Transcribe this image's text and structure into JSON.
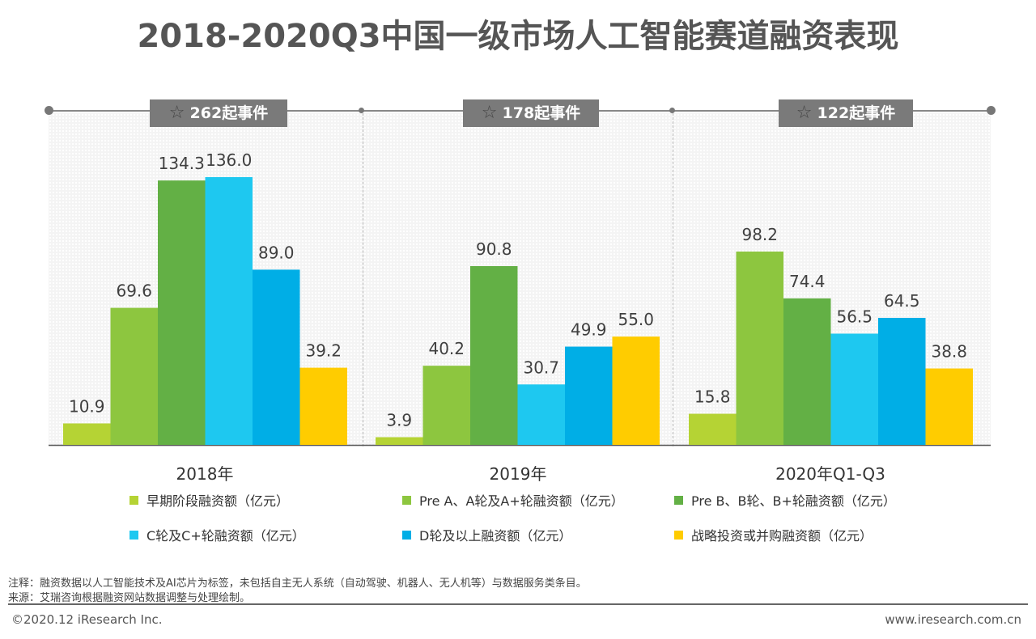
{
  "title": "2018-2020Q3中国一级市场人工智能赛道融资表现",
  "badges": [
    {
      "icon": "star-icon",
      "text": "262起事件"
    },
    {
      "icon": "star-icon",
      "text": "178起事件"
    },
    {
      "icon": "star-icon",
      "text": "122起事件"
    }
  ],
  "chart_data": {
    "type": "bar",
    "categories": [
      "2018年",
      "2019年",
      "2020年Q1-Q3"
    ],
    "series": [
      {
        "name": "早期阶段融资额（亿元）",
        "color": "#b5d334",
        "values": [
          10.9,
          3.9,
          15.8
        ]
      },
      {
        "name": "Pre A、A轮及A+轮融资额（亿元）",
        "color": "#8dc63f",
        "values": [
          69.6,
          40.2,
          98.2
        ]
      },
      {
        "name": "Pre B、B轮、B+轮融资额（亿元）",
        "color": "#63b045",
        "values": [
          134.3,
          90.8,
          74.4
        ]
      },
      {
        "name": "C轮及C+轮融资额（亿元）",
        "color": "#1ec8f0",
        "values": [
          136.0,
          30.7,
          56.5
        ]
      },
      {
        "name": "D轮及以上融资额（亿元）",
        "color": "#00aee6",
        "values": [
          89.0,
          49.9,
          64.5
        ]
      },
      {
        "name": "战略投资或并购融资额（亿元）",
        "color": "#ffcc00",
        "values": [
          39.2,
          55.0,
          38.8
        ]
      }
    ],
    "legend_position": "bottom",
    "grid": false
  },
  "notes": [
    "注释：融资数据以人工智能技术及AI芯片为标签，未包括自主无人系统（自动驾驶、机器人、无人机等）与数据服务类条目。",
    "来源：艾瑞咨询根据融资网站数据调整与处理绘制。"
  ],
  "footer": {
    "left": "©2020.12 iResearch Inc.",
    "right": "www.iresearch.com.cn"
  }
}
